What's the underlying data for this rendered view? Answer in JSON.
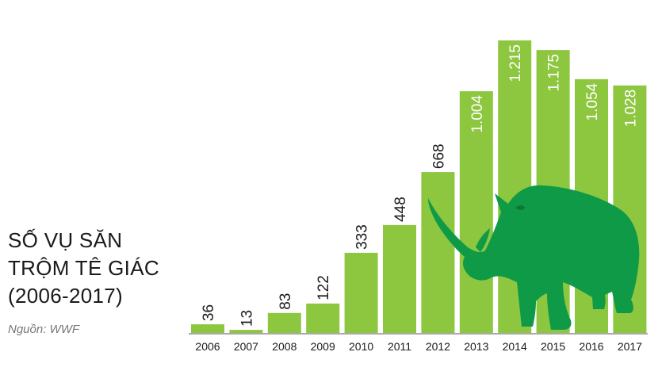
{
  "title_lines": [
    "SỐ VỤ SĂN",
    "TRỘM TÊ GIÁC",
    "(2006-2017)"
  ],
  "source": "Nguồn: WWF",
  "colors": {
    "bar": "#8dc63f",
    "rhino": "#0f9a48",
    "axis": "#555555",
    "text_dark": "#1a1a1a",
    "text_light": "#ffffff"
  },
  "illustration": "rhino-silhouette",
  "chart_data": {
    "type": "bar",
    "title": "SỐ VỤ SĂN TRỘM TÊ GIÁC (2006-2017)",
    "categories": [
      "2006",
      "2007",
      "2008",
      "2009",
      "2010",
      "2011",
      "2012",
      "2013",
      "2014",
      "2015",
      "2016",
      "2017"
    ],
    "values": [
      36,
      13,
      83,
      122,
      333,
      448,
      668,
      1004,
      1215,
      1175,
      1054,
      1028
    ],
    "value_labels": [
      "36",
      "13",
      "83",
      "122",
      "333",
      "448",
      "668",
      "1.004",
      "1.215",
      "1.175",
      "1.054",
      "1.028"
    ],
    "label_inside_from_index": 7,
    "xlabel": "",
    "ylabel": "",
    "ylim": [
      0,
      1215
    ],
    "grid": false,
    "legend": "none"
  }
}
